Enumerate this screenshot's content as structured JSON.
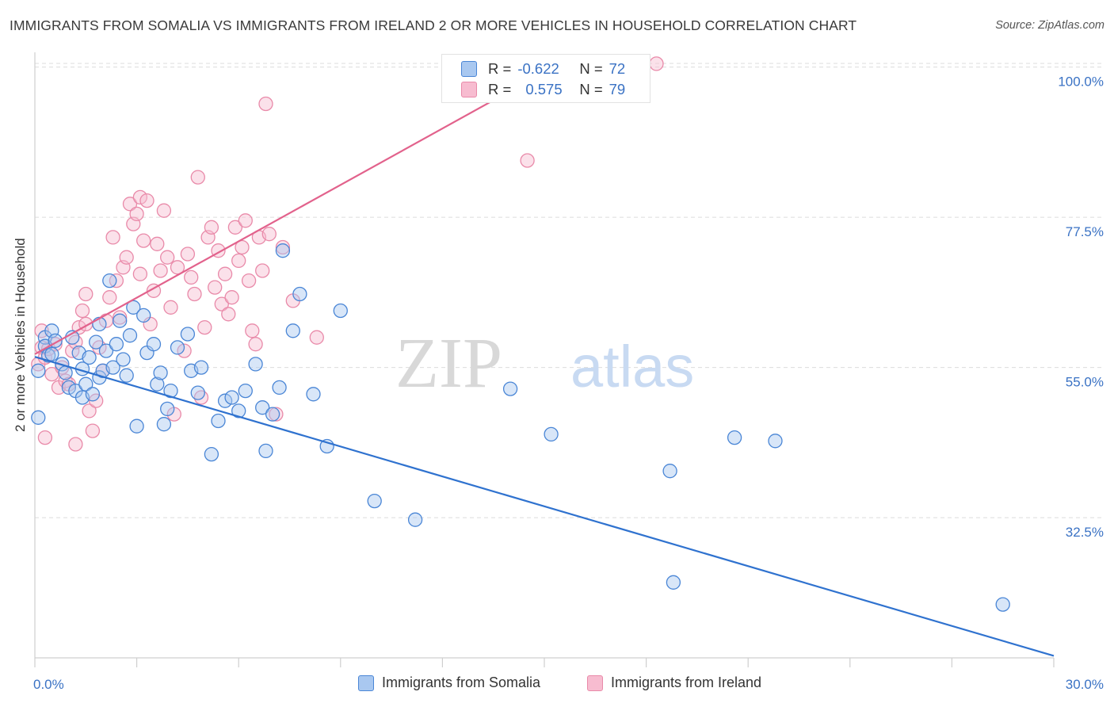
{
  "header": {
    "title": "IMMIGRANTS FROM SOMALIA VS IMMIGRANTS FROM IRELAND 2 OR MORE VEHICLES IN HOUSEHOLD CORRELATION CHART",
    "source": "Source: ZipAtlas.com"
  },
  "watermark": {
    "zip": "ZIP",
    "atlas": "atlas"
  },
  "colors": {
    "somalia_fill": "#a9c8f0",
    "somalia_stroke": "#4a86d6",
    "somalia_line": "#2f72cf",
    "ireland_fill": "#f7bcd0",
    "ireland_stroke": "#e98aa9",
    "ireland_line": "#e2628c",
    "tick_text": "#3a72c4",
    "grid": "#dcdcdc"
  },
  "legend_box": {
    "rows": [
      {
        "r_label": "R =",
        "r_value": "-0.622",
        "n_label": "N =",
        "n_value": "72"
      },
      {
        "r_label": "R =",
        "r_value": "0.575",
        "n_label": "N =",
        "n_value": "79"
      }
    ]
  },
  "legend_bottom": [
    "Immigrants from Somalia",
    "Immigrants from Ireland"
  ],
  "chart_data": {
    "type": "scatter",
    "title": "IMMIGRANTS FROM SOMALIA VS IMMIGRANTS FROM IRELAND 2 OR MORE VEHICLES IN HOUSEHOLD CORRELATION CHART",
    "xlabel": "",
    "ylabel": "2 or more Vehicles in Household",
    "xlim": [
      0,
      30
    ],
    "ylim": [
      11.5,
      101.5
    ],
    "x_tick_labels": [
      "0.0%",
      "30.0%"
    ],
    "y_ticks": [
      32.5,
      55.0,
      77.5,
      100.0
    ],
    "y_tick_labels": [
      "32.5%",
      "55.0%",
      "77.5%",
      "100.0%"
    ],
    "grid": true,
    "series": [
      {
        "name": "Immigrants from Somalia",
        "R": -0.622,
        "N": 72,
        "trend": {
          "x": [
            0,
            30
          ],
          "y": [
            56.6,
            11.8
          ]
        },
        "points": [
          [
            0.1,
            47.5
          ],
          [
            0.1,
            54.5
          ],
          [
            0.3,
            59.5
          ],
          [
            0.3,
            58.2
          ],
          [
            0.4,
            56.8
          ],
          [
            0.5,
            60.5
          ],
          [
            0.6,
            59.0
          ],
          [
            0.5,
            57.0
          ],
          [
            0.8,
            55.5
          ],
          [
            0.9,
            54.2
          ],
          [
            1.0,
            52.0
          ],
          [
            1.1,
            59.5
          ],
          [
            1.3,
            57.2
          ],
          [
            1.2,
            51.5
          ],
          [
            1.4,
            54.8
          ],
          [
            1.4,
            50.5
          ],
          [
            1.5,
            52.5
          ],
          [
            1.6,
            56.5
          ],
          [
            1.7,
            51.0
          ],
          [
            1.8,
            58.8
          ],
          [
            1.9,
            53.5
          ],
          [
            1.9,
            61.5
          ],
          [
            2.0,
            54.5
          ],
          [
            2.1,
            57.5
          ],
          [
            2.2,
            68.0
          ],
          [
            2.3,
            55.0
          ],
          [
            2.4,
            58.5
          ],
          [
            2.5,
            62.0
          ],
          [
            2.6,
            56.2
          ],
          [
            2.7,
            53.8
          ],
          [
            2.8,
            59.8
          ],
          [
            2.9,
            64.0
          ],
          [
            3.0,
            46.2
          ],
          [
            3.3,
            57.2
          ],
          [
            3.2,
            62.8
          ],
          [
            3.5,
            58.5
          ],
          [
            3.6,
            52.5
          ],
          [
            3.8,
            46.5
          ],
          [
            3.9,
            48.8
          ],
          [
            3.7,
            54.2
          ],
          [
            4.0,
            51.5
          ],
          [
            4.2,
            58.0
          ],
          [
            4.5,
            60.0
          ],
          [
            4.6,
            54.5
          ],
          [
            4.8,
            51.2
          ],
          [
            4.9,
            55.0
          ],
          [
            5.2,
            42.0
          ],
          [
            5.4,
            47.0
          ],
          [
            5.6,
            50.0
          ],
          [
            5.8,
            50.5
          ],
          [
            6.0,
            48.5
          ],
          [
            6.2,
            51.5
          ],
          [
            6.5,
            55.5
          ],
          [
            6.7,
            49.0
          ],
          [
            6.8,
            42.5
          ],
          [
            7.0,
            48.0
          ],
          [
            7.2,
            52.0
          ],
          [
            7.3,
            72.5
          ],
          [
            7.6,
            60.5
          ],
          [
            7.8,
            66.0
          ],
          [
            8.2,
            51.0
          ],
          [
            8.6,
            43.2
          ],
          [
            9.0,
            63.5
          ],
          [
            10.0,
            35.0
          ],
          [
            11.2,
            32.2
          ],
          [
            14.0,
            51.8
          ],
          [
            15.2,
            45.0
          ],
          [
            18.7,
            39.5
          ],
          [
            18.8,
            22.8
          ],
          [
            20.6,
            44.5
          ],
          [
            21.8,
            44.0
          ],
          [
            28.5,
            19.5
          ]
        ]
      },
      {
        "name": "Immigrants from Ireland",
        "R": 0.575,
        "N": 79,
        "trend": {
          "x": [
            0,
            15.8
          ],
          "y": [
            57.0,
            101.5
          ]
        },
        "points": [
          [
            0.1,
            55.5
          ],
          [
            0.2,
            60.5
          ],
          [
            0.2,
            58.0
          ],
          [
            0.3,
            56.5
          ],
          [
            0.3,
            44.5
          ],
          [
            0.4,
            57.8
          ],
          [
            0.5,
            54.0
          ],
          [
            0.6,
            58.5
          ],
          [
            0.7,
            52.0
          ],
          [
            0.8,
            55.0
          ],
          [
            0.9,
            53.0
          ],
          [
            1.0,
            52.5
          ],
          [
            1.1,
            57.5
          ],
          [
            1.2,
            58.8
          ],
          [
            1.2,
            43.5
          ],
          [
            1.3,
            61.0
          ],
          [
            1.4,
            63.5
          ],
          [
            1.5,
            61.5
          ],
          [
            1.5,
            66.0
          ],
          [
            1.6,
            48.5
          ],
          [
            1.7,
            45.5
          ],
          [
            1.8,
            50.0
          ],
          [
            1.9,
            58.0
          ],
          [
            2.0,
            54.5
          ],
          [
            2.1,
            62.0
          ],
          [
            2.2,
            65.5
          ],
          [
            2.3,
            74.5
          ],
          [
            2.4,
            68.0
          ],
          [
            2.5,
            62.5
          ],
          [
            2.6,
            70.0
          ],
          [
            2.7,
            71.5
          ],
          [
            2.8,
            79.5
          ],
          [
            2.9,
            76.5
          ],
          [
            3.0,
            78.0
          ],
          [
            3.1,
            80.5
          ],
          [
            3.1,
            69.0
          ],
          [
            3.2,
            74.0
          ],
          [
            3.3,
            80.0
          ],
          [
            3.4,
            61.5
          ],
          [
            3.5,
            66.5
          ],
          [
            3.6,
            73.5
          ],
          [
            3.7,
            69.5
          ],
          [
            3.8,
            78.5
          ],
          [
            3.9,
            71.5
          ],
          [
            4.0,
            64.0
          ],
          [
            4.1,
            48.0
          ],
          [
            4.2,
            70.0
          ],
          [
            4.4,
            57.5
          ],
          [
            4.5,
            72.0
          ],
          [
            4.6,
            68.5
          ],
          [
            4.7,
            66.0
          ],
          [
            4.8,
            83.5
          ],
          [
            4.9,
            50.5
          ],
          [
            5.0,
            61.0
          ],
          [
            5.1,
            74.5
          ],
          [
            5.2,
            76.0
          ],
          [
            5.3,
            67.0
          ],
          [
            5.4,
            72.5
          ],
          [
            5.5,
            64.5
          ],
          [
            5.6,
            69.0
          ],
          [
            5.7,
            63.0
          ],
          [
            5.8,
            65.5
          ],
          [
            5.9,
            76.0
          ],
          [
            6.0,
            71.0
          ],
          [
            6.1,
            73.0
          ],
          [
            6.2,
            77.0
          ],
          [
            6.3,
            68.0
          ],
          [
            6.4,
            60.5
          ],
          [
            6.5,
            58.5
          ],
          [
            6.6,
            74.5
          ],
          [
            6.7,
            69.5
          ],
          [
            6.8,
            94.5
          ],
          [
            6.9,
            75.0
          ],
          [
            7.1,
            48.0
          ],
          [
            7.3,
            73.0
          ],
          [
            7.6,
            65.0
          ],
          [
            8.3,
            59.5
          ],
          [
            14.5,
            86.0
          ],
          [
            18.3,
            100.5
          ]
        ]
      }
    ]
  }
}
